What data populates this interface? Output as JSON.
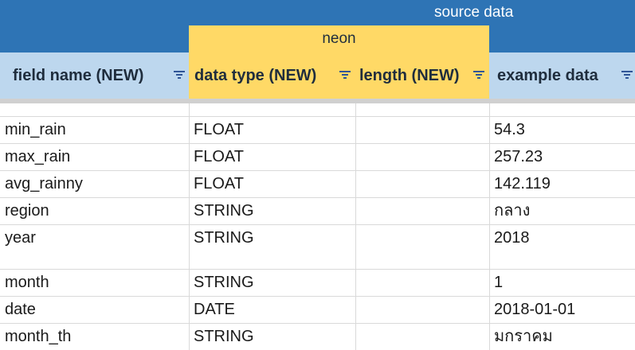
{
  "header": {
    "source_title": "source data",
    "neon_title": "neon",
    "columns": [
      {
        "label": "field name (NEW)"
      },
      {
        "label": "data type (NEW)"
      },
      {
        "label": "length (NEW)"
      },
      {
        "label": "example data"
      }
    ]
  },
  "rows": [
    {
      "field": "min_rain",
      "type": "FLOAT",
      "length": "",
      "example": "54.3"
    },
    {
      "field": "max_rain",
      "type": "FLOAT",
      "length": "",
      "example": "257.23"
    },
    {
      "field": "avg_rainny",
      "type": "FLOAT",
      "length": "",
      "example": "142.119"
    },
    {
      "field": "region",
      "type": "STRING",
      "length": "",
      "example": "กลาง"
    },
    {
      "field": "year",
      "type": "STRING",
      "length": "",
      "example": "2018"
    },
    {
      "field": "month",
      "type": "STRING",
      "length": "",
      "example": "1"
    },
    {
      "field": "date",
      "type": "DATE",
      "length": "",
      "example": "2018-01-01"
    },
    {
      "field": "month_th",
      "type": "STRING",
      "length": "",
      "example": "มกราคม"
    }
  ],
  "colors": {
    "source_band": "#2e74b5",
    "neon_band": "#ffd966",
    "header_blue": "#bdd7ee",
    "filter_icon": "#2f5597"
  }
}
